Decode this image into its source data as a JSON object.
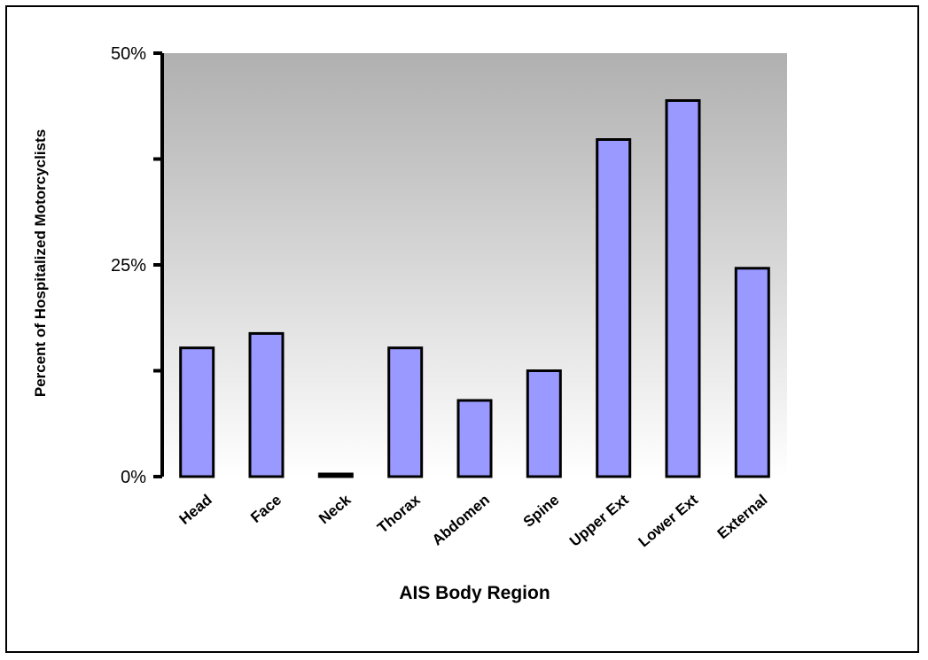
{
  "chart_data": {
    "type": "bar",
    "xlabel": "AIS Body Region",
    "ylabel": "Percent of Hospitalized Motorcyclists",
    "categories": [
      "Head",
      "Face",
      "Neck",
      "Thorax",
      "Abdomen",
      "Spine",
      "Upper Ext",
      "Lower Ext",
      "External"
    ],
    "values": [
      15.2,
      16.9,
      0.3,
      15.2,
      9.0,
      12.5,
      39.8,
      44.4,
      24.6
    ],
    "unit": "%",
    "ylim": [
      0,
      50
    ],
    "y_tick_labels": [
      "0%",
      "25%",
      "50%"
    ],
    "y_tick_values": [
      0,
      25,
      50
    ],
    "y_minor_ticks": [
      12.5,
      37.5
    ],
    "grid": false,
    "legend": "none",
    "colors": {
      "bar_fill": "#9999FF",
      "bar_stroke": "#000000",
      "plot_gradient_top": "#B0B0B0",
      "plot_gradient_bottom": "#FFFFFF"
    }
  }
}
